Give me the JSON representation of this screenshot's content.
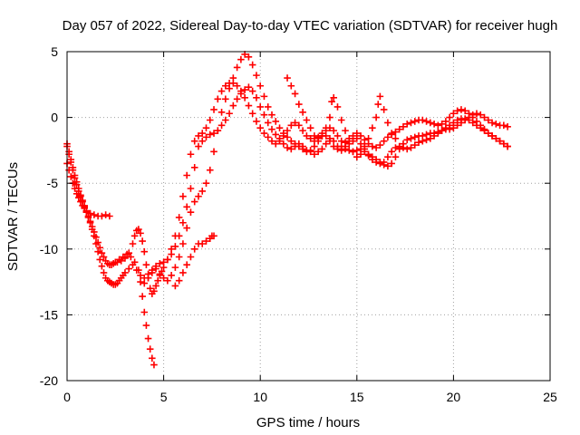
{
  "chart_data": {
    "type": "scatter",
    "title": "Day 057 of 2022, Sidereal Day-to-day VTEC variation (SDTVAR) for receiver hugh",
    "xlabel": "GPS time / hours",
    "ylabel": "SDTVAR / TECUs",
    "xlim": [
      0,
      25
    ],
    "ylim": [
      -20,
      5
    ],
    "xticks": [
      "0",
      "5",
      "10",
      "15",
      "20",
      "25"
    ],
    "yticks": [
      "-20",
      "-15",
      "-10",
      "-5",
      "0",
      "5"
    ],
    "xtick_values": [
      0,
      5,
      10,
      15,
      20,
      25
    ],
    "ytick_values": [
      -20,
      -15,
      -10,
      -5,
      0,
      5
    ],
    "grid": true,
    "marker": "plus",
    "color": "#ff0000",
    "series": [
      {
        "x": [
          0.0,
          0.1,
          0.2,
          0.3,
          0.4,
          0.5,
          0.6,
          0.7,
          0.8,
          0.9,
          1.0,
          1.1,
          1.2,
          1.3,
          1.4,
          1.5,
          1.6,
          1.7,
          1.8,
          1.9,
          2.0,
          2.1,
          2.2,
          2.3,
          2.4,
          2.5,
          2.6,
          2.7,
          2.8,
          2.9,
          3.0,
          3.2,
          3.4,
          3.6,
          3.8,
          4.0,
          4.2,
          4.4,
          4.6,
          4.8,
          5.0,
          5.2,
          5.4,
          5.6,
          5.8,
          6.0,
          6.2,
          6.4,
          6.6,
          6.8,
          7.0,
          7.2,
          7.4,
          7.6,
          7.8,
          8.0,
          8.2,
          8.4,
          8.6,
          8.8,
          9.0,
          9.2,
          9.4,
          9.6,
          9.8,
          10.0,
          10.2,
          10.4,
          10.6,
          10.8,
          11.0,
          11.2,
          11.4,
          11.6,
          11.8,
          12.0,
          12.2,
          12.4,
          12.6,
          12.8,
          13.0,
          13.2,
          13.4,
          13.6,
          13.8,
          14.0,
          14.2,
          14.4,
          14.6,
          14.8,
          15.0,
          15.2,
          15.4,
          15.6,
          15.8,
          16.0,
          16.2,
          16.4,
          16.6,
          16.8,
          17.0,
          17.2,
          17.4,
          17.6,
          17.8,
          18.0,
          18.2,
          18.4,
          18.6,
          18.8,
          19.0,
          19.2,
          19.4,
          19.6,
          19.8,
          20.0,
          20.2,
          20.4,
          20.6,
          20.8,
          21.0,
          21.2,
          21.4,
          21.6,
          21.8,
          22.0,
          22.2,
          22.4,
          22.6,
          22.8
        ],
        "y": [
          -2.2,
          -2.8,
          -3.4,
          -4.0,
          -4.6,
          -5.1,
          -5.6,
          -6.0,
          -6.4,
          -6.8,
          -7.2,
          -7.6,
          -8.0,
          -8.5,
          -9.0,
          -9.6,
          -10.2,
          -10.8,
          -11.3,
          -11.8,
          -12.2,
          -12.4,
          -12.5,
          -12.6,
          -12.7,
          -12.7,
          -12.6,
          -12.4,
          -12.2,
          -12.0,
          -11.8,
          -11.5,
          -11.2,
          -11.6,
          -12.0,
          -12.2,
          -11.9,
          -11.6,
          -11.3,
          -11.1,
          -11.0,
          -10.8,
          -10.4,
          -9.8,
          -9.0,
          -8.0,
          -6.8,
          -5.4,
          -3.8,
          -2.2,
          -1.8,
          -1.5,
          -1.3,
          -1.2,
          -1.0,
          -0.6,
          -0.2,
          0.3,
          0.9,
          1.4,
          1.8,
          2.1,
          2.3,
          2.0,
          1.5,
          0.8,
          0.2,
          -0.4,
          -0.9,
          -1.3,
          -1.6,
          -2.0,
          -2.3,
          -2.4,
          -2.2,
          -2.0,
          -2.2,
          -2.5,
          -2.6,
          -2.8,
          -2.6,
          -2.4,
          -2.0,
          -1.6,
          -1.8,
          -2.2,
          -2.5,
          -2.4,
          -2.0,
          -1.8,
          -1.6,
          -2.0,
          -2.4,
          -2.8,
          -3.0,
          -3.2,
          -3.4,
          -3.6,
          -3.7,
          -3.5,
          -3.0,
          -2.4,
          -2.0,
          -1.7,
          -1.6,
          -1.5,
          -1.4,
          -1.4,
          -1.3,
          -1.2,
          -1.2,
          -1.1,
          -1.0,
          -0.9,
          -0.9,
          -0.8,
          -0.6,
          -0.4,
          -0.2,
          0.0,
          0.2,
          0.3,
          0.2,
          0.0,
          -0.2,
          -0.4,
          -0.5,
          -0.6,
          -0.6,
          -0.7
        ]
      },
      {
        "x": [
          0.0,
          0.1,
          0.2,
          0.3,
          0.4,
          0.5,
          0.6,
          0.7,
          0.8,
          0.9,
          1.0,
          1.1,
          1.2,
          1.3,
          1.4,
          1.5,
          1.6,
          1.7,
          1.8,
          1.9,
          2.0,
          2.1,
          2.2,
          2.3,
          2.4,
          2.5,
          2.7,
          2.9,
          3.1,
          3.3,
          3.5,
          3.7,
          3.8,
          3.9,
          4.0,
          4.1,
          4.2,
          4.3,
          4.4,
          4.5
        ],
        "y": [
          -2.0,
          -2.6,
          -3.2,
          -3.8,
          -4.4,
          -4.9,
          -5.4,
          -5.9,
          -6.3,
          -6.7,
          -7.1,
          -7.5,
          -7.9,
          -8.3,
          -8.7,
          -9.1,
          -9.5,
          -9.9,
          -10.3,
          -10.6,
          -10.9,
          -11.1,
          -11.2,
          -11.2,
          -11.1,
          -11.0,
          -10.8,
          -10.6,
          -10.4,
          -10.6,
          -11.0,
          -11.6,
          -12.5,
          -13.6,
          -14.8,
          -15.8,
          -16.8,
          -17.6,
          -18.3,
          -18.8
        ]
      },
      {
        "x": [
          0.0,
          0.1,
          0.2,
          0.3,
          0.4,
          0.5,
          0.6,
          0.7,
          0.8,
          0.9,
          1.0,
          1.2,
          1.4,
          1.6,
          1.8,
          2.0,
          2.2
        ],
        "y": [
          -3.5,
          -4.0,
          -4.5,
          -5.0,
          -5.4,
          -5.8,
          -6.1,
          -6.4,
          -6.7,
          -6.9,
          -7.1,
          -7.3,
          -7.4,
          -7.5,
          -7.5,
          -7.4,
          -7.5
        ]
      },
      {
        "x": [
          2.6,
          2.8,
          3.0,
          3.2,
          3.4,
          3.5,
          3.6,
          3.7,
          3.8,
          3.9,
          4.0,
          4.1,
          4.2,
          4.3,
          4.4,
          4.5,
          4.6,
          4.7,
          4.8,
          4.9,
          5.0,
          5.2,
          5.4,
          5.6,
          5.8,
          6.0,
          6.2,
          6.4,
          6.6,
          6.8,
          7.0,
          7.2,
          7.4,
          7.6,
          7.8,
          8.0,
          8.2,
          8.4,
          8.6,
          8.8,
          9.0,
          9.2,
          9.4,
          9.6,
          9.8,
          10.0,
          10.2,
          10.4,
          10.6,
          10.8,
          11.0,
          11.2,
          11.4,
          11.6,
          11.8,
          12.0,
          12.2,
          12.4,
          12.6,
          12.8,
          13.0,
          13.2,
          13.4,
          13.6,
          13.8,
          14.0,
          14.2,
          14.4,
          14.6,
          14.8,
          15.0,
          15.2,
          15.4,
          15.6,
          15.8,
          16.0,
          16.2,
          16.4,
          16.6,
          16.8,
          17.0,
          17.2,
          17.4,
          17.6,
          17.8,
          18.0,
          18.2,
          18.4,
          18.6,
          18.8,
          19.0,
          19.2,
          19.4,
          19.6,
          19.8,
          20.0,
          20.2,
          20.4,
          20.6,
          20.8,
          21.0,
          21.2,
          21.4,
          21.6,
          21.8,
          22.0,
          22.2,
          22.4,
          22.6,
          22.8
        ],
        "y": [
          -11.0,
          -10.9,
          -10.7,
          -10.3,
          -9.6,
          -9.0,
          -8.6,
          -8.5,
          -8.8,
          -9.4,
          -10.2,
          -11.2,
          -12.2,
          -13.0,
          -13.4,
          -13.2,
          -12.8,
          -12.4,
          -12.0,
          -11.7,
          -11.4,
          -10.8,
          -10.0,
          -9.0,
          -7.6,
          -6.0,
          -4.4,
          -2.8,
          -1.8,
          -1.4,
          -1.2,
          -0.8,
          -0.2,
          0.6,
          1.4,
          2.0,
          2.4,
          2.6,
          2.6,
          2.4,
          2.0,
          1.5,
          0.9,
          0.3,
          -0.3,
          -0.8,
          -1.2,
          -1.5,
          -1.8,
          -2.0,
          -1.8,
          -1.4,
          -1.0,
          -0.6,
          -0.4,
          -0.6,
          -1.0,
          -1.4,
          -1.6,
          -1.8,
          -1.5,
          -1.2,
          -1.4,
          -1.8,
          -2.2,
          -2.4,
          -2.2,
          -1.9,
          -1.6,
          -1.4,
          -1.2,
          -1.4,
          -1.7,
          -2.0,
          -2.2,
          -2.3,
          -2.1,
          -1.8,
          -1.5,
          -1.3,
          -1.1,
          -0.9,
          -0.7,
          -0.5,
          -0.4,
          -0.3,
          -0.2,
          -0.2,
          -0.3,
          -0.4,
          -0.5,
          -0.6,
          -0.5,
          -0.3,
          0.0,
          0.3,
          0.5,
          0.6,
          0.5,
          0.3,
          0.0,
          -0.3,
          -0.6,
          -0.9,
          -1.2,
          -1.4,
          -1.6,
          -1.8,
          -2.0,
          -2.2
        ]
      },
      {
        "x": [
          4.0,
          4.2,
          4.4,
          4.6,
          4.8,
          5.0,
          5.2,
          5.4,
          5.6,
          5.8,
          6.0,
          6.2,
          6.4,
          6.6,
          6.8,
          7.0,
          7.2,
          7.4,
          7.6,
          7.8,
          8.0,
          8.2,
          8.4,
          8.6,
          8.8,
          9.0,
          9.2,
          9.4,
          9.6,
          9.8,
          10.0,
          10.2,
          10.4,
          10.6,
          10.8,
          11.0,
          11.2,
          11.4,
          11.6,
          11.8,
          12.0,
          12.2,
          12.4,
          12.6,
          12.8,
          13.0,
          13.2,
          13.4,
          13.6,
          13.8,
          14.0,
          14.2,
          14.4,
          14.6,
          14.8,
          15.0,
          15.2,
          15.4,
          15.6,
          15.8,
          16.0,
          16.2,
          16.4,
          16.6,
          16.8,
          17.0,
          17.2,
          17.4,
          17.6,
          17.8,
          18.0,
          18.2,
          18.4,
          18.6,
          18.8,
          19.0,
          19.2,
          19.4,
          19.6,
          19.8,
          20.0,
          20.2,
          20.4,
          20.6,
          20.8,
          21.0,
          21.2,
          21.4,
          21.6,
          21.8,
          22.0,
          22.2,
          22.4,
          22.6,
          22.8
        ],
        "y": [
          -12.6,
          -12.2,
          -11.8,
          -11.5,
          -11.9,
          -12.2,
          -12.4,
          -12.0,
          -11.4,
          -10.6,
          -9.6,
          -8.4,
          -7.2,
          -6.4,
          -6.0,
          -5.6,
          -5.0,
          -4.0,
          -2.6,
          -1.0,
          0.4,
          1.4,
          2.2,
          3.0,
          3.8,
          4.4,
          4.8,
          4.6,
          4.0,
          3.2,
          2.4,
          1.6,
          0.8,
          0.2,
          -0.3,
          -0.8,
          -1.2,
          -1.5,
          -1.8,
          -2.0,
          -2.2,
          -2.4,
          -2.6,
          -2.5,
          -2.2,
          -1.8,
          -1.4,
          -1.0,
          -0.8,
          -1.0,
          -1.4,
          -1.8,
          -2.2,
          -2.5,
          -2.6,
          -2.5,
          -2.4,
          -2.6,
          -2.9,
          -3.2,
          -3.4,
          -3.5,
          -3.4,
          -3.0,
          -2.6,
          -2.3,
          -2.2,
          -2.3,
          -2.4,
          -2.3,
          -2.1,
          -1.9,
          -1.8,
          -1.7,
          -1.6,
          -1.4,
          -1.2,
          -1.0,
          -0.8,
          -0.6,
          -0.4,
          -0.2,
          -0.1,
          -0.1,
          -0.2,
          -0.4,
          -0.6,
          -0.8,
          -1.0,
          -1.2,
          -1.4,
          -1.6,
          -1.8,
          -2.0,
          -2.2
        ]
      },
      {
        "x": [
          5.6,
          5.8,
          6.0,
          6.2,
          6.4,
          6.6,
          6.8,
          7.0,
          7.2,
          7.4,
          7.5,
          7.6
        ],
        "y": [
          -12.8,
          -12.4,
          -11.8,
          -11.2,
          -10.6,
          -10.0,
          -9.6,
          -9.6,
          -9.4,
          -9.2,
          -9.0,
          -9.0
        ]
      },
      {
        "x": [
          11.4,
          11.6,
          11.8,
          12.0,
          12.2,
          12.4,
          12.6,
          12.8,
          13.0,
          13.2,
          13.4,
          13.6,
          13.7,
          13.8,
          14.0,
          14.2,
          14.4,
          14.6,
          14.8,
          15.0,
          15.2,
          15.4,
          15.6,
          15.8,
          16.0,
          16.1,
          16.2,
          16.4,
          16.6,
          16.8,
          17.0
        ],
        "y": [
          3.0,
          2.4,
          1.8,
          1.0,
          0.4,
          -0.2,
          -0.8,
          -1.4,
          -1.6,
          -1.4,
          -0.8,
          0.0,
          1.2,
          1.5,
          0.8,
          -0.2,
          -1.0,
          -1.8,
          -2.6,
          -3.0,
          -2.8,
          -2.2,
          -1.6,
          -0.8,
          0.0,
          1.0,
          1.6,
          0.6,
          -0.4,
          -1.2,
          -1.6
        ]
      }
    ]
  }
}
